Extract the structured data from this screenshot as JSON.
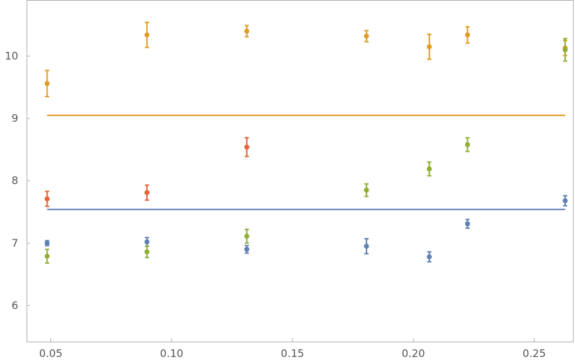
{
  "chart_data": {
    "type": "scatter",
    "title": "",
    "xlabel": "",
    "ylabel": "",
    "xlim": [
      0.04,
      0.266
    ],
    "ylim": [
      5.42,
      10.9
    ],
    "x_ticks": [
      0.05,
      0.1,
      0.15,
      0.2,
      0.25
    ],
    "x_tick_labels": [
      "0.05",
      "0.10",
      "0.15",
      "0.20",
      "0.25"
    ],
    "y_ticks": [
      6,
      7,
      8,
      9,
      10
    ],
    "y_tick_labels": [
      "6",
      "7",
      "8",
      "9",
      "10"
    ],
    "grid": false,
    "legend": "none",
    "series": [
      {
        "color": "#5e81b5",
        "x": [
          0.0485,
          0.0898,
          0.1311,
          0.1806,
          0.2066,
          0.2224,
          0.2628
        ],
        "y": [
          7.0,
          7.02,
          6.9,
          6.95,
          6.78,
          7.31,
          7.68
        ],
        "err": [
          0.04,
          0.07,
          0.06,
          0.12,
          0.08,
          0.07,
          0.08
        ]
      },
      {
        "color": "#e19c24",
        "x": [
          0.0485,
          0.0898,
          0.1311,
          0.1806,
          0.2066,
          0.2224,
          0.2628
        ],
        "y": [
          9.56,
          10.34,
          10.4,
          10.32,
          10.15,
          10.34,
          10.13
        ],
        "err": [
          0.21,
          0.2,
          0.09,
          0.09,
          0.2,
          0.13,
          0.12
        ]
      },
      {
        "color": "#8fb032",
        "x": [
          0.0485,
          0.0898,
          0.1311,
          0.1806,
          0.2066,
          0.2224,
          0.2628
        ],
        "y": [
          6.79,
          6.86,
          7.11,
          7.85,
          8.19,
          8.58,
          10.1
        ],
        "err": [
          0.11,
          0.09,
          0.11,
          0.1,
          0.11,
          0.11,
          0.18
        ]
      },
      {
        "color": "#eb6235",
        "x": [
          0.0485,
          0.0898,
          0.1311
        ],
        "y": [
          7.71,
          7.81,
          8.54
        ],
        "err": [
          0.12,
          0.12,
          0.15
        ]
      }
    ],
    "reference_lines": [
      {
        "color": "#e19c24",
        "y": 9.05,
        "x_from": 0.0485,
        "x_to": 0.2628
      },
      {
        "color": "#5e81b5",
        "y": 7.54,
        "x_from": 0.0485,
        "x_to": 0.2628
      }
    ]
  }
}
